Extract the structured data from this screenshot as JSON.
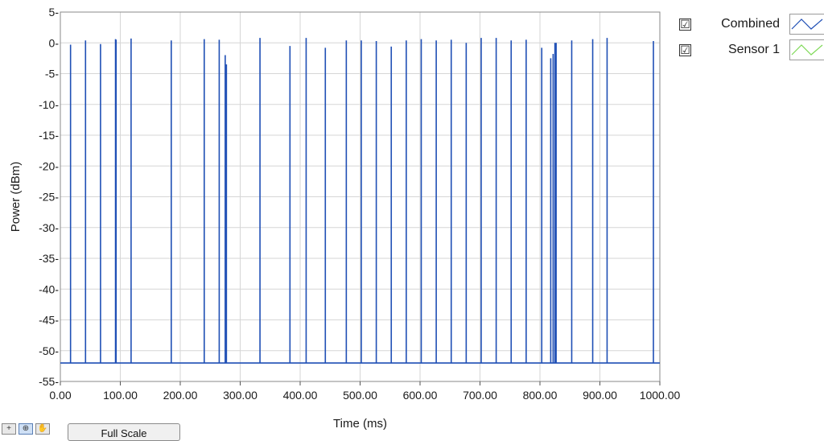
{
  "chart_data": {
    "type": "line",
    "title": "",
    "xlabel": "Time (ms)",
    "ylabel": "Power (dBm)",
    "xlim": [
      0,
      1000
    ],
    "ylim": [
      -55,
      5
    ],
    "x_ticks": [
      "0.00",
      "100.00",
      "200.00",
      "300.00",
      "400.00",
      "500.00",
      "600.00",
      "700.00",
      "800.00",
      "900.00",
      "1000.00"
    ],
    "y_ticks": [
      "5-",
      "0-",
      "-5-",
      "-10-",
      "-15-",
      "-20-",
      "-25-",
      "-30-",
      "-35-",
      "-40-",
      "-45-",
      "-50-",
      "-55-"
    ],
    "grid": true,
    "legend_position": "right",
    "baseline": -52,
    "series": [
      {
        "name": "Combined",
        "color": "#1f4fb5",
        "pulses": [
          {
            "x": 17,
            "y": -0.3
          },
          {
            "x": 42,
            "y": 0.4
          },
          {
            "x": 67,
            "y": -0.2
          },
          {
            "x": 92,
            "y": 0.6
          },
          {
            "x": 93,
            "y": 0.5
          },
          {
            "x": 118,
            "y": 0.7
          },
          {
            "x": 185,
            "y": 0.4
          },
          {
            "x": 240,
            "y": 0.6
          },
          {
            "x": 265,
            "y": 0.5
          },
          {
            "x": 275,
            "y": -2.0
          },
          {
            "x": 277,
            "y": -3.5
          },
          {
            "x": 333,
            "y": 0.8
          },
          {
            "x": 383,
            "y": -0.5
          },
          {
            "x": 410,
            "y": 0.8
          },
          {
            "x": 442,
            "y": -0.8
          },
          {
            "x": 477,
            "y": 0.4
          },
          {
            "x": 502,
            "y": 0.4
          },
          {
            "x": 527,
            "y": 0.3
          },
          {
            "x": 552,
            "y": -0.6
          },
          {
            "x": 577,
            "y": 0.4
          },
          {
            "x": 602,
            "y": 0.6
          },
          {
            "x": 627,
            "y": 0.4
          },
          {
            "x": 652,
            "y": 0.5
          },
          {
            "x": 677,
            "y": 0.0
          },
          {
            "x": 702,
            "y": 0.8
          },
          {
            "x": 727,
            "y": 0.8
          },
          {
            "x": 752,
            "y": 0.4
          },
          {
            "x": 777,
            "y": 0.5
          },
          {
            "x": 803,
            "y": -0.8
          },
          {
            "x": 818,
            "y": -2.5
          },
          {
            "x": 822,
            "y": -1.8
          },
          {
            "x": 825,
            "y": 0.0
          },
          {
            "x": 827,
            "y": 0.0
          },
          {
            "x": 853,
            "y": 0.4
          },
          {
            "x": 888,
            "y": 0.6
          },
          {
            "x": 912,
            "y": 0.8
          },
          {
            "x": 1000,
            "y": 0.3
          }
        ]
      },
      {
        "name": "Sensor 1",
        "color": "#7ed957",
        "pulses": []
      }
    ]
  },
  "legend": {
    "items": [
      {
        "label": "Combined",
        "checked": "☑",
        "color": "#1f4fb5"
      },
      {
        "label": "Sensor 1",
        "checked": "☑",
        "color": "#7ed957"
      }
    ]
  },
  "toolbar": {
    "full_scale_label": "Full Scale",
    "icons": [
      "cursor-icon",
      "zoom-icon",
      "pan-icon"
    ]
  }
}
